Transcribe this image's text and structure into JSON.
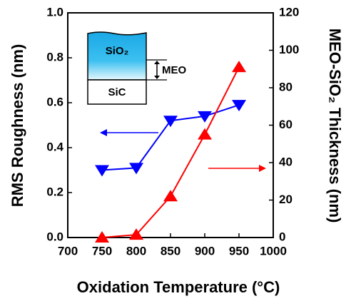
{
  "chart_data": {
    "type": "line",
    "xlabel": "Oxidation Temperature (°C)",
    "ylabel": "RMS Roughness (nm)",
    "y2label": "MEO-SiO₂ Thickness (nm)",
    "annotations": [
      "SiO₂",
      "MEO",
      "SiC"
    ],
    "x": [
      750,
      800,
      850,
      900,
      950
    ],
    "series": [
      {
        "color": "#0000ff",
        "marker": "triangle-down",
        "values": [
          0.3,
          0.31,
          0.52,
          0.54,
          0.59
        ]
      },
      {
        "color": "#ff0000",
        "marker": "triangle-up",
        "axis": "y2",
        "values": [
          0,
          1.5,
          22,
          55,
          91
        ]
      }
    ],
    "xlim": [
      700,
      1000
    ],
    "xticks": [
      700,
      750,
      800,
      850,
      900,
      950,
      1000
    ],
    "ylim": [
      0,
      1
    ],
    "yticks": [
      {
        "value": 0,
        "label": "0.0"
      },
      {
        "value": 0.2,
        "label": "0.2"
      },
      {
        "value": 0.4,
        "label": "0.4"
      },
      {
        "value": 0.6,
        "label": "0.6"
      },
      {
        "value": 0.8,
        "label": "0.8"
      },
      {
        "value": 1,
        "label": "1.0"
      }
    ],
    "y2lim": [
      0,
      120
    ],
    "y2ticks": [
      0,
      20,
      40,
      60,
      80,
      100,
      120
    ]
  }
}
